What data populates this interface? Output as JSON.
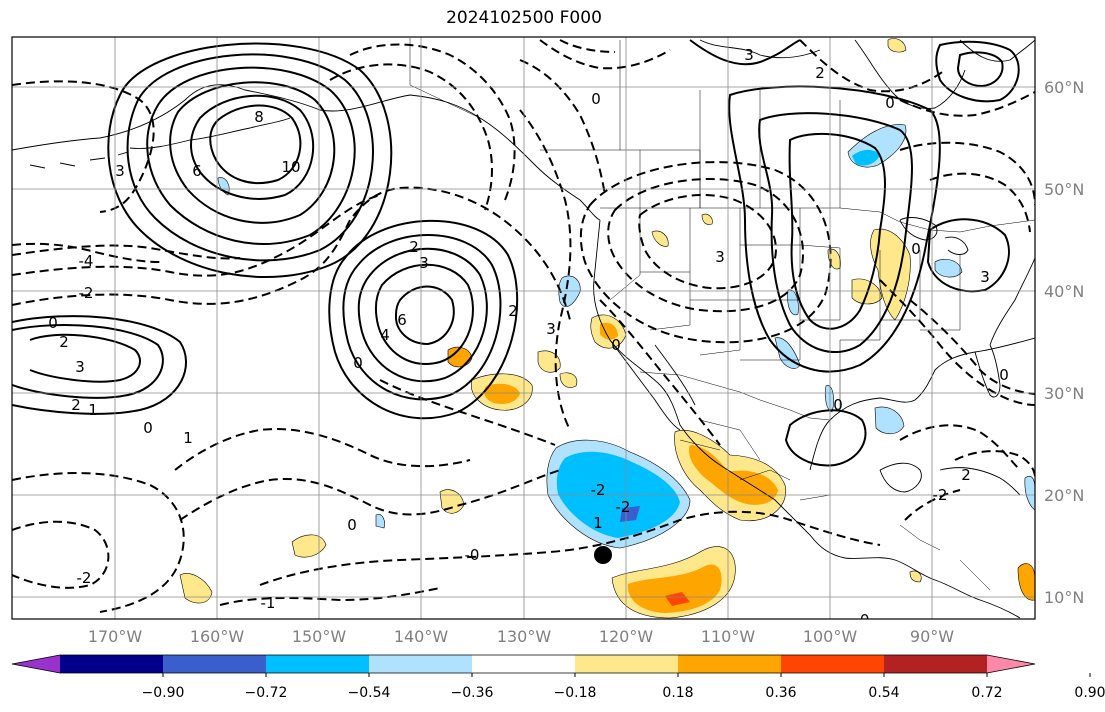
{
  "title": "2024102500 F000",
  "map": {
    "latitude_labels": [
      "60°N",
      "50°N",
      "40°N",
      "30°N",
      "20°N",
      "10°N"
    ],
    "longitude_labels": [
      "170°W",
      "160°W",
      "150°W",
      "140°W",
      "130°W",
      "120°W",
      "110°W",
      "100°W",
      "90°W"
    ]
  },
  "contour_labels": [
    {
      "text": "3"
    },
    {
      "text": "2"
    },
    {
      "text": "0"
    },
    {
      "text": "8"
    },
    {
      "text": "10"
    },
    {
      "text": "6"
    },
    {
      "text": "3"
    },
    {
      "text": "-4"
    },
    {
      "text": "-2"
    },
    {
      "text": "0"
    },
    {
      "text": "2"
    },
    {
      "text": "3"
    },
    {
      "text": "2"
    },
    {
      "text": "1"
    },
    {
      "text": "0"
    },
    {
      "text": "1"
    },
    {
      "text": "2"
    },
    {
      "text": "3"
    },
    {
      "text": "6"
    },
    {
      "text": "4"
    },
    {
      "text": "0"
    },
    {
      "text": "2"
    },
    {
      "text": "3"
    },
    {
      "text": "0"
    },
    {
      "text": "-2"
    },
    {
      "text": "-2"
    },
    {
      "text": "1"
    },
    {
      "text": "-0"
    },
    {
      "text": "0"
    },
    {
      "text": "-2"
    },
    {
      "text": "-1"
    },
    {
      "text": "3"
    },
    {
      "text": "0"
    },
    {
      "text": "3"
    },
    {
      "text": "0"
    },
    {
      "text": "0"
    },
    {
      "text": "0"
    },
    {
      "text": "2"
    },
    {
      "text": "-2"
    },
    {
      "text": "-0"
    }
  ],
  "colorbar": {
    "colors": [
      "#9932cc",
      "#00008b",
      "#3a5fcd",
      "#00bfff",
      "#b0e2ff",
      "#ffffff",
      "#ffe88c",
      "#ffa500",
      "#ff4500",
      "#b22222",
      "#ff88aa"
    ],
    "tick_labels": [
      "−0.90",
      "−0.72",
      "−0.54",
      "−0.36",
      "−0.18",
      "0.18",
      "0.36",
      "0.54",
      "0.72",
      "0.90"
    ]
  }
}
